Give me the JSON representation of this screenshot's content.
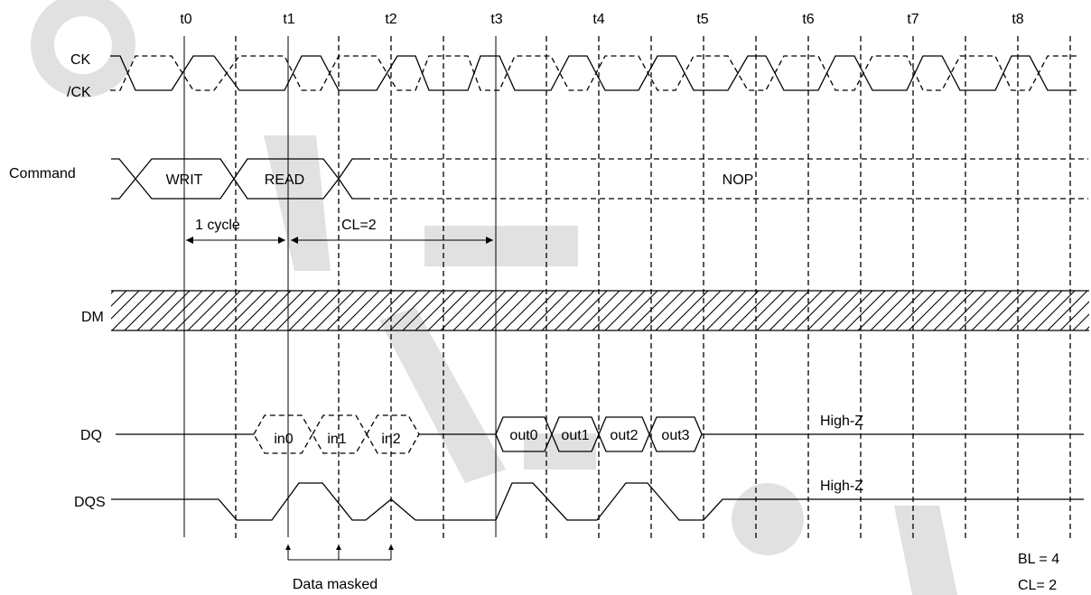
{
  "time_labels": [
    "t0",
    "t1",
    "t2",
    "t3",
    "t4",
    "t5",
    "t6",
    "t7",
    "t8"
  ],
  "signals": {
    "ck": "CK",
    "ck_bar": "/CK",
    "command": "Command",
    "dm": "DM",
    "dq": "DQ",
    "dqs": "DQS"
  },
  "commands": [
    "WRIT",
    "READ",
    "NOP"
  ],
  "annotations": {
    "one_cycle": "1 cycle",
    "cl": "CL=2",
    "data_masked": "Data masked"
  },
  "dq_inputs": [
    "in0",
    "in1",
    "in2"
  ],
  "dq_outputs": [
    "out0",
    "out1",
    "out2",
    "out3"
  ],
  "high_z_dq": "High-Z",
  "high_z_dqs": "High-Z",
  "params": {
    "bl": "BL = 4",
    "cl": "CL= 2"
  }
}
